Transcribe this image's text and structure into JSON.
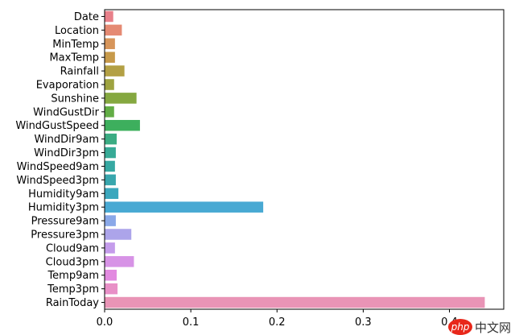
{
  "chart_data": {
    "type": "bar",
    "orientation": "horizontal",
    "title": "",
    "xlabel": "",
    "ylabel": "",
    "categories": [
      "Date",
      "Location",
      "MinTemp",
      "MaxTemp",
      "Rainfall",
      "Evaporation",
      "Sunshine",
      "WindGustDir",
      "WindGustSpeed",
      "WindDir9am",
      "WindDir3pm",
      "WindSpeed9am",
      "WindSpeed3pm",
      "Humidity9am",
      "Humidity3pm",
      "Pressure9am",
      "Pressure3pm",
      "Cloud9am",
      "Cloud3pm",
      "Temp9am",
      "Temp3pm",
      "RainToday"
    ],
    "values": [
      0.01,
      0.02,
      0.012,
      0.012,
      0.023,
      0.011,
      0.037,
      0.011,
      0.041,
      0.014,
      0.013,
      0.012,
      0.013,
      0.016,
      0.184,
      0.013,
      0.031,
      0.012,
      0.034,
      0.014,
      0.015,
      0.441
    ],
    "colors": [
      "#e8808a",
      "#e58a73",
      "#d7955a",
      "#c79a4a",
      "#b3a044",
      "#9ea340",
      "#85a840",
      "#62ad45",
      "#3daf5d",
      "#3bac83",
      "#37aa96",
      "#36a8a2",
      "#38a6ad",
      "#3ba7bd",
      "#48a9d3",
      "#8aa8e8",
      "#aca4ea",
      "#c49ceb",
      "#d793e6",
      "#e28ae0",
      "#e890c7",
      "#e994b6"
    ],
    "xlim": [
      0,
      0.463
    ],
    "x_ticks": [
      "0.0",
      "0.1",
      "0.2",
      "0.3",
      "0.4"
    ],
    "grid": false,
    "legend": "none"
  },
  "watermark": {
    "logo_text": "php",
    "text": "中文网"
  }
}
